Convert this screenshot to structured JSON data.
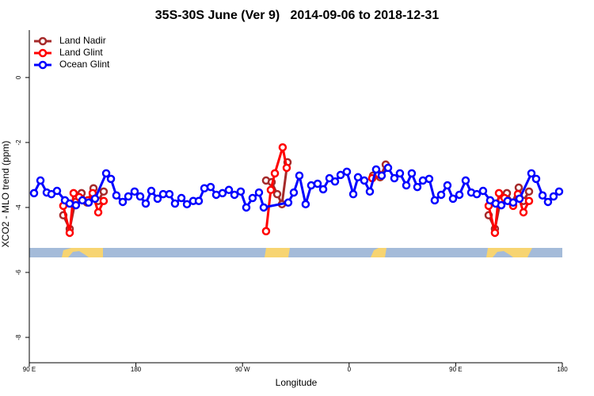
{
  "chart_data": {
    "type": "line",
    "title": "35S-30S June (Ver 9)   2014-09-06 to 2018-12-31",
    "x_label": "Longitude",
    "y_label": "XCO2 - MLO trend (ppm)",
    "xlim": [
      90,
      540
    ],
    "ylim": [
      -8.78,
      1.46
    ],
    "xticks": [
      {
        "value": 90,
        "label": "90 E"
      },
      180,
      {
        "value": 270,
        "label": "90 W"
      },
      {
        "value": 360,
        "label": "0"
      },
      {
        "value": 450,
        "label": "90 E"
      },
      {
        "value": 540,
        "label": "180"
      }
    ],
    "yticks": [
      0,
      -2,
      -4,
      -6,
      -8
    ],
    "legend": "top-left",
    "series": [
      {
        "name": "Land Nadir",
        "color": "#a52a2a",
        "x": [
          118.7,
          124.1,
          128.8,
          134.1,
          138.8,
          144.2,
          148.2,
          152.8,
          null,
          289.9,
          294.6,
          299.3,
          303.3,
          308.0,
          null,
          380.2,
          386.2,
          390.9,
          null,
          477.8,
          483.1,
          487.8,
          493.2,
          497.8,
          503.2,
          507.2,
          511.9
        ],
        "values": [
          -4.24,
          -4.66,
          -3.83,
          -3.56,
          -3.85,
          -3.41,
          -3.8,
          -3.51,
          null,
          -3.17,
          -3.22,
          -3.59,
          -3.9,
          -2.61,
          null,
          -3.02,
          -3.07,
          -2.68,
          null,
          -4.24,
          -4.66,
          -3.8,
          -3.56,
          -3.85,
          -3.39,
          -3.8,
          -3.51
        ]
      },
      {
        "name": "Land Glint",
        "color": "#ff0000",
        "x": [
          118.7,
          124.1,
          127.4,
          132.1,
          139.5,
          143.5,
          148.2,
          152.8,
          null,
          289.9,
          293.9,
          297.3,
          303.9,
          307.3,
          null,
          379.5,
          384.9,
          null,
          477.8,
          483.1,
          486.5,
          491.2,
          498.5,
          502.5,
          507.2,
          511.9
        ],
        "values": [
          -3.95,
          -4.78,
          -3.56,
          -3.68,
          -3.78,
          -3.56,
          -4.15,
          -3.8,
          null,
          -4.73,
          -3.46,
          -2.95,
          -2.15,
          -2.78,
          null,
          -3.1,
          -2.98,
          null,
          -3.95,
          -4.78,
          -3.56,
          -3.71,
          -3.95,
          -3.59,
          -4.15,
          -3.8
        ]
      },
      {
        "name": "Ocean Glint",
        "color": "#0000ff",
        "x": [
          94.0,
          99.4,
          104.7,
          108.7,
          113.4,
          120.1,
          124.1,
          129.4,
          134.8,
          140.1,
          145.5,
          154.9,
          158.9,
          163.5,
          168.9,
          173.6,
          178.9,
          183.6,
          188.3,
          193.0,
          198.3,
          203.0,
          208.3,
          213.0,
          218.4,
          223.1,
          228.4,
          233.1,
          237.8,
          243.1,
          247.8,
          253.1,
          258.5,
          263.2,
          268.5,
          273.2,
          278.5,
          283.9,
          287.9,
          308.6,
          313.3,
          318.0,
          323.3,
          328.0,
          333.4,
          338.1,
          343.4,
          348.1,
          352.8,
          358.1,
          363.5,
          367.5,
          372.8,
          377.5,
          382.8,
          387.5,
          392.9,
          398.2,
          402.9,
          408.3,
          412.9,
          417.6,
          422.3,
          427.6,
          432.3,
          437.7,
          443.0,
          447.7,
          453.1,
          458.4,
          463.1,
          467.8,
          473.1,
          479.1,
          483.8,
          488.5,
          493.8,
          498.5,
          503.9,
          513.9,
          517.9,
          523.3,
          527.9,
          532.6,
          537.3
        ],
        "values": [
          -3.56,
          -3.17,
          -3.54,
          -3.59,
          -3.49,
          -3.78,
          -3.88,
          -3.93,
          -3.78,
          -3.85,
          -3.73,
          -2.95,
          -3.12,
          -3.63,
          -3.83,
          -3.66,
          -3.51,
          -3.66,
          -3.88,
          -3.49,
          -3.73,
          -3.59,
          -3.59,
          -3.88,
          -3.71,
          -3.9,
          -3.8,
          -3.8,
          -3.41,
          -3.37,
          -3.61,
          -3.56,
          -3.46,
          -3.61,
          -3.51,
          -4.0,
          -3.71,
          -3.54,
          -4.0,
          -3.85,
          -3.54,
          -3.02,
          -3.9,
          -3.32,
          -3.27,
          -3.44,
          -3.1,
          -3.2,
          -3.0,
          -2.9,
          -3.59,
          -3.07,
          -3.17,
          -3.51,
          -2.83,
          -3.02,
          -2.78,
          -3.1,
          -2.95,
          -3.32,
          -2.95,
          -3.37,
          -3.17,
          -3.12,
          -3.78,
          -3.61,
          -3.32,
          -3.73,
          -3.61,
          -3.17,
          -3.54,
          -3.59,
          -3.49,
          -3.78,
          -3.88,
          -3.93,
          -3.8,
          -3.85,
          -3.73,
          -2.95,
          -3.12,
          -3.63,
          -3.83,
          -3.66,
          -3.51
        ]
      }
    ]
  }
}
